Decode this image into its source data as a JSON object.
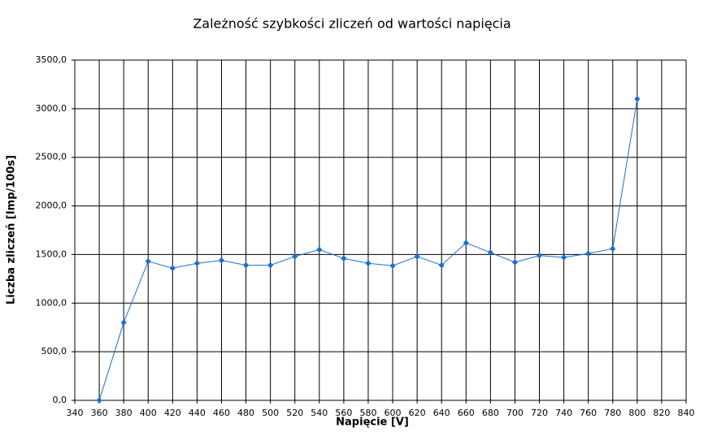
{
  "chart_data": {
    "type": "line",
    "title": "Zależność szybkości zliczeń od wartości napięcia",
    "x_label": "Napięcie [V]",
    "y_label": "Liczba zliczeń [Imp/100s]",
    "x": [
      360,
      380,
      400,
      420,
      440,
      460,
      480,
      500,
      520,
      540,
      560,
      580,
      600,
      620,
      640,
      660,
      680,
      700,
      720,
      740,
      760,
      780,
      800
    ],
    "series": [
      {
        "name": "Liczba zliczeń",
        "color": "#1a6fd1",
        "values": [
          0,
          800,
          1430,
          1360,
          1410,
          1440,
          1390,
          1390,
          1480,
          1550,
          1460,
          1410,
          1385,
          1480,
          1390,
          1620,
          1520,
          1420,
          1490,
          1470,
          1510,
          1560,
          3100
        ]
      }
    ],
    "xlim": [
      340,
      840
    ],
    "xticks": [
      340,
      360,
      380,
      400,
      420,
      440,
      460,
      480,
      500,
      520,
      540,
      560,
      580,
      600,
      620,
      640,
      660,
      680,
      700,
      720,
      740,
      760,
      780,
      800,
      820,
      840
    ],
    "ylim": [
      0,
      3500
    ],
    "yticks": [
      {
        "value": 0,
        "label": "0,0"
      },
      {
        "value": 500,
        "label": "500,0"
      },
      {
        "value": 1000,
        "label": "1000,0"
      },
      {
        "value": 1500,
        "label": "1500,0"
      },
      {
        "value": 2000,
        "label": "2000,0"
      },
      {
        "value": 2500,
        "label": "2500,0"
      },
      {
        "value": 3000,
        "label": "3000,0"
      },
      {
        "value": 3500,
        "label": "3500,0"
      }
    ],
    "grid": true
  }
}
